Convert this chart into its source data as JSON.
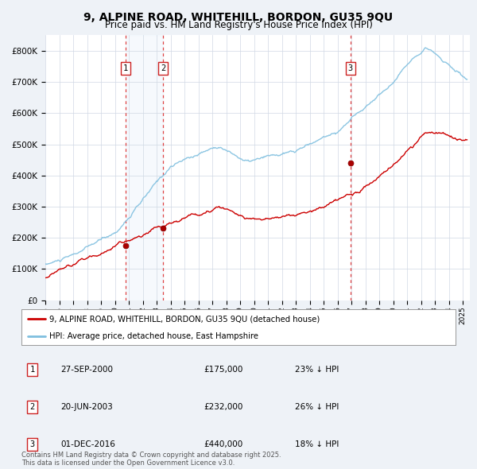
{
  "title": "9, ALPINE ROAD, WHITEHILL, BORDON, GU35 9QU",
  "subtitle": "Price paid vs. HM Land Registry's House Price Index (HPI)",
  "ylim": [
    0,
    850000
  ],
  "yticks": [
    0,
    100000,
    200000,
    300000,
    400000,
    500000,
    600000,
    700000,
    800000
  ],
  "ytick_labels": [
    "£0",
    "£100K",
    "£200K",
    "£300K",
    "£400K",
    "£500K",
    "£600K",
    "£700K",
    "£800K"
  ],
  "xlim_start": 1995.0,
  "xlim_end": 2025.5,
  "title_fontsize": 10,
  "subtitle_fontsize": 8.5,
  "background_color": "#eef2f7",
  "plot_background": "#ffffff",
  "grid_color": "#d0d8e4",
  "hpi_line_color": "#7fbfdf",
  "price_line_color": "#cc0000",
  "transactions": [
    {
      "num": 1,
      "date_str": "27-SEP-2000",
      "year": 2000.75,
      "price": 175000,
      "pct": "23%",
      "dir": "↓"
    },
    {
      "num": 2,
      "date_str": "20-JUN-2003",
      "year": 2003.47,
      "price": 232000,
      "pct": "26%",
      "dir": "↓"
    },
    {
      "num": 3,
      "date_str": "01-DEC-2016",
      "year": 2016.92,
      "price": 440000,
      "pct": "18%",
      "dir": "↓"
    }
  ],
  "legend_label_price": "9, ALPINE ROAD, WHITEHILL, BORDON, GU35 9QU (detached house)",
  "legend_label_hpi": "HPI: Average price, detached house, East Hampshire",
  "footnote": "Contains HM Land Registry data © Crown copyright and database right 2025.\nThis data is licensed under the Open Government Licence v3.0.",
  "table_rows": [
    {
      "num": "1",
      "date": "27-SEP-2000",
      "price": "£175,000",
      "pct": "23% ↓ HPI"
    },
    {
      "num": "2",
      "date": "20-JUN-2003",
      "price": "£232,000",
      "pct": "26% ↓ HPI"
    },
    {
      "num": "3",
      "date": "01-DEC-2016",
      "price": "£440,000",
      "pct": "18% ↓ HPI"
    }
  ]
}
